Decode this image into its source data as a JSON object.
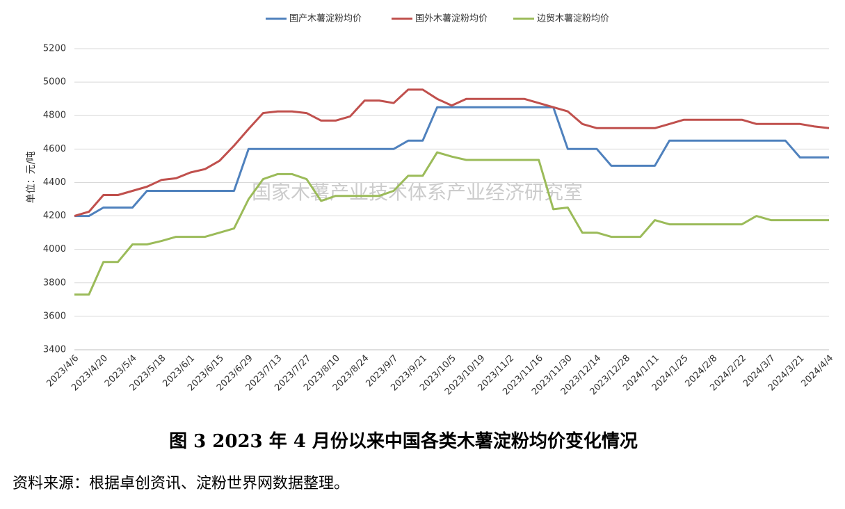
{
  "chart_data": {
    "type": "line",
    "categories": [
      "2023/4/6",
      null,
      "2023/4/20",
      null,
      "2023/5/4",
      null,
      "2023/5/18",
      null,
      "2023/6/1",
      null,
      "2023/6/15",
      null,
      "2023/6/29",
      null,
      "2023/7/13",
      null,
      "2023/7/27",
      null,
      "2023/8/10",
      null,
      "2023/8/24",
      null,
      "2023/9/7",
      null,
      "2023/9/21",
      null,
      "2023/10/5",
      null,
      "2023/10/19",
      null,
      "2023/11/2",
      null,
      "2023/11/16",
      null,
      "2023/11/30",
      null,
      "2023/12/14",
      null,
      "2023/12/28",
      null,
      "2024/1/11",
      null,
      "2024/1/25",
      null,
      "2024/2/8",
      null,
      "2024/2/22",
      null,
      "2024/3/7",
      null,
      "2024/3/21",
      null,
      "2024/4/4"
    ],
    "series": [
      {
        "name": "国产木薯淀粉均价",
        "color": "#4f81bd",
        "values": [
          4200,
          4200,
          4250,
          4250,
          4250,
          4350,
          4350,
          4350,
          4350,
          4350,
          4350,
          4350,
          4600,
          4600,
          4600,
          4600,
          4600,
          4600,
          4600,
          4600,
          4600,
          4600,
          4600,
          4650,
          4650,
          4850,
          4850,
          4850,
          4850,
          4850,
          4850,
          4850,
          4850,
          4850,
          4600,
          4600,
          4600,
          4500,
          4500,
          4500,
          4500,
          4650,
          4650,
          4650,
          4650,
          4650,
          4650,
          4650,
          4650,
          4650,
          4550,
          4550,
          4550
        ]
      },
      {
        "name": "国外木薯淀粉均价",
        "color": "#c0504d",
        "values": [
          4200,
          4225,
          4325,
          4325,
          4350,
          4375,
          4415,
          4425,
          4460,
          4480,
          4530,
          4620,
          4720,
          4815,
          4825,
          4825,
          4815,
          4770,
          4770,
          4795,
          4890,
          4890,
          4875,
          4955,
          4955,
          4900,
          4860,
          4900,
          4900,
          4900,
          4900,
          4900,
          4875,
          4850,
          4825,
          4750,
          4725,
          4725,
          4725,
          4725,
          4725,
          4750,
          4775,
          4775,
          4775,
          4775,
          4775,
          4750,
          4750,
          4750,
          4750,
          4735,
          4725
        ]
      },
      {
        "name": "边贸木薯淀粉均价",
        "color": "#9bbb59",
        "values": [
          3730,
          3730,
          3925,
          3925,
          4030,
          4030,
          4050,
          4075,
          4075,
          4075,
          4100,
          4125,
          4300,
          4420,
          4450,
          4450,
          4420,
          4290,
          4320,
          4320,
          4320,
          4320,
          4350,
          4440,
          4440,
          4580,
          4555,
          4535,
          4535,
          4535,
          4535,
          4535,
          4535,
          4240,
          4250,
          4100,
          4100,
          4075,
          4075,
          4075,
          4175,
          4150,
          4150,
          4150,
          4150,
          4150,
          4150,
          4200,
          4175,
          4175,
          4175,
          4175,
          4175
        ]
      }
    ],
    "ylim": [
      3400,
      5200
    ],
    "yticks": [
      3400,
      3600,
      3800,
      4000,
      4200,
      4400,
      4600,
      4800,
      5000,
      5200
    ],
    "grid": true,
    "ylabel": "单位：元/吨",
    "watermark": "国家木薯产业技术体系产业经济研究室",
    "caption": "图 3   2023 年 4 月份以来中国各类木薯淀粉均价变化情况",
    "source": "资料来源：根据卓创资讯、淀粉世界网数据整理。"
  }
}
